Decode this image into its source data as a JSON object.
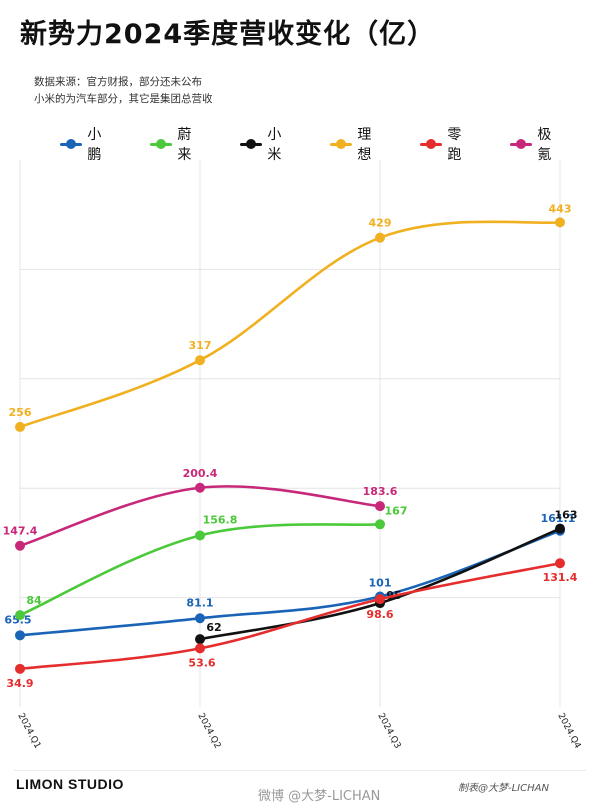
{
  "title": "新势力2024季度营收变化（亿）",
  "notes": {
    "line1": "数据来源：官方财报，部分还未公布",
    "line2": "小米的为汽车部分，其它是集团总营收"
  },
  "footer": {
    "brand": "LIMON STUDIO",
    "credit": "制表@大梦-LICHAN",
    "watermark": "微博 @大梦-LICHAN"
  },
  "chart_data": {
    "type": "line",
    "title": "新势力2024季度营收变化（亿）",
    "xlabel": "",
    "ylabel": "",
    "ylim": [
      0,
      500
    ],
    "grid": true,
    "legend_position": "top",
    "categories": [
      "2024.Q1",
      "2024.Q2",
      "2024.Q3",
      "2024.Q4"
    ],
    "series": [
      {
        "name": "小鹏",
        "color": "#1a64b8",
        "values": [
          65.5,
          81.1,
          101,
          161.1
        ]
      },
      {
        "name": "蔚来",
        "color": "#4cc93a",
        "values": [
          84,
          156.8,
          167,
          null
        ]
      },
      {
        "name": "小米",
        "color": "#111111",
        "values": [
          null,
          62,
          95,
          163
        ]
      },
      {
        "name": "理想",
        "color": "#f0b020",
        "values": [
          256,
          317,
          429,
          443
        ]
      },
      {
        "name": "零跑",
        "color": "#e52d2d",
        "values": [
          34.9,
          53.6,
          98.6,
          131.4
        ]
      },
      {
        "name": "极氪",
        "color": "#c8287a",
        "values": [
          147.4,
          200.4,
          183.6,
          null
        ]
      }
    ]
  }
}
